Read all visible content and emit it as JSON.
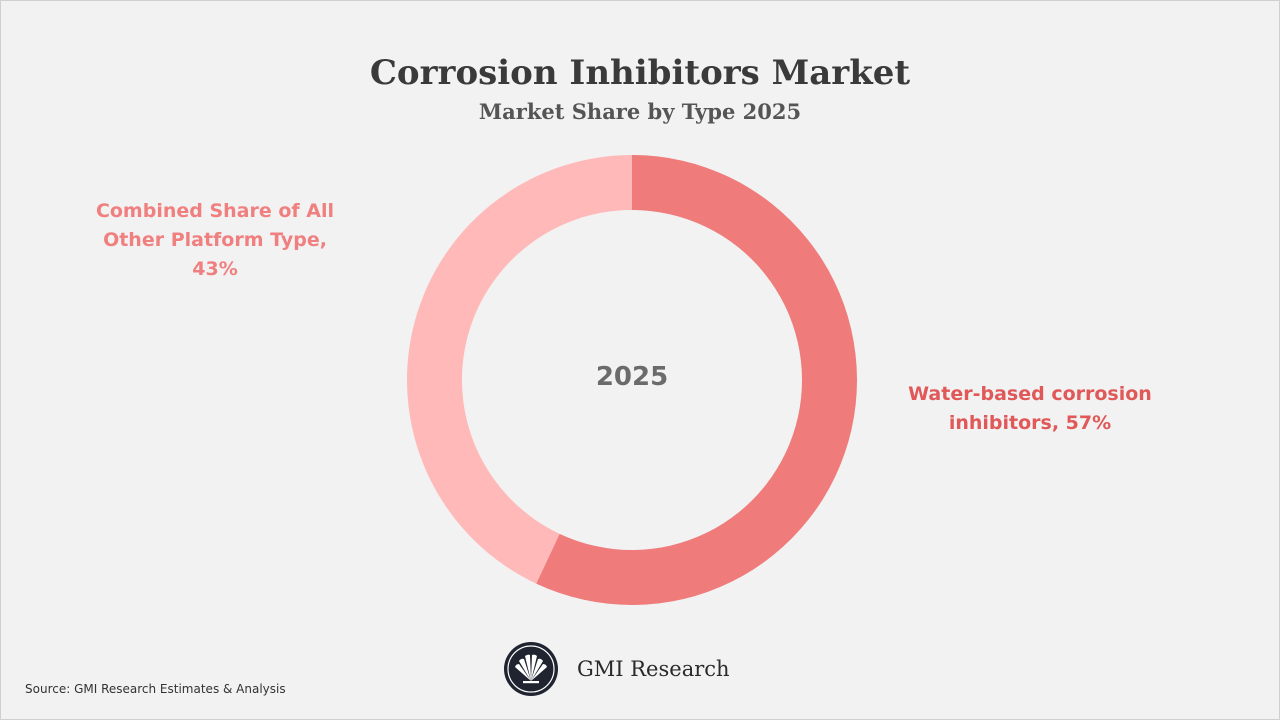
{
  "chart_data": {
    "type": "pie",
    "style": "donut",
    "title": "Corrosion Inhibitors Market",
    "subtitle": "Market Share by Type 2025",
    "center_label": "2025",
    "slices": [
      {
        "label": "Water-based corrosion inhibitors",
        "value": 57,
        "display": "Water-based corrosion inhibitors, 57%",
        "color": "#f07b7b",
        "label_color": "#e05858"
      },
      {
        "label": "Combined Share of All Other Platform Type",
        "value": 43,
        "display": "Combined Share of All Other Platform Type, 43%",
        "color": "#ffb9b9",
        "label_color": "#f08080"
      }
    ],
    "legend": "none"
  },
  "branding": {
    "name": "GMI Research",
    "logo_icon": "gmi-research-fan-logo",
    "logo_color": "#1f2430"
  },
  "source": "Source: GMI Research Estimates & Analysis"
}
